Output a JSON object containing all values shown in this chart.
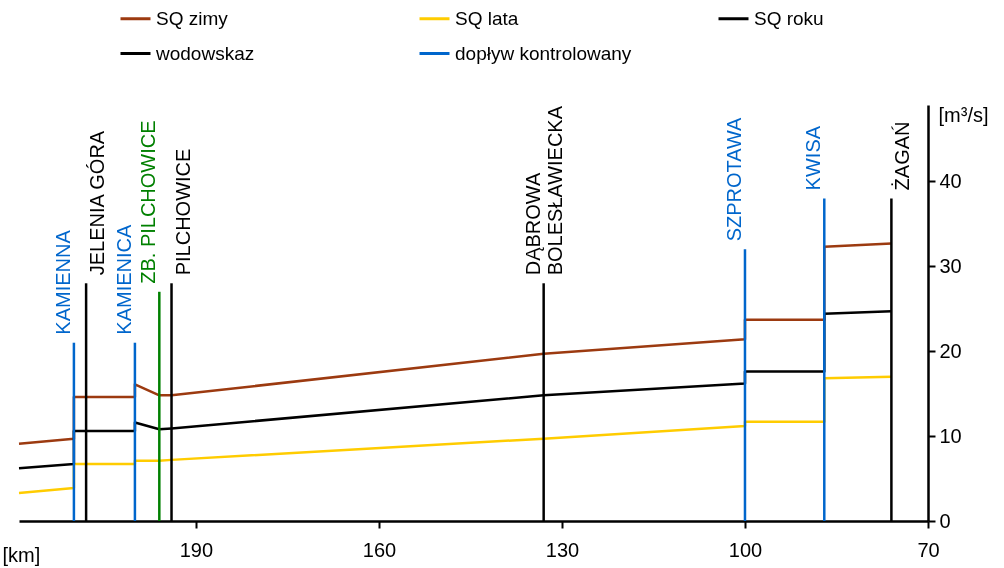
{
  "chart_data": {
    "type": "line",
    "xlabel": "[km]",
    "ylabel": "[m³/s]",
    "xlim": [
      219,
      70
    ],
    "xticks": [
      190,
      160,
      130,
      100,
      70
    ],
    "ylim": [
      0,
      49
    ],
    "yticks": [
      0,
      10,
      20,
      30,
      40
    ],
    "grid": false,
    "legend": "top",
    "marker": "none",
    "line_style": "solid",
    "series": [
      {
        "name": "SQ zimy",
        "color": "#9c3a10",
        "x": [
          219,
          210,
          210,
          200,
          200,
          196,
          194,
          133,
          100,
          100,
          87,
          87,
          76
        ],
        "values": [
          9.1,
          9.7,
          14.6,
          14.6,
          16.1,
          14.8,
          14.8,
          19.7,
          21.4,
          23.7,
          23.7,
          32.3,
          32.7
        ]
      },
      {
        "name": "SQ lata",
        "color": "#ffcc00",
        "x": [
          219,
          210,
          210,
          200,
          200,
          196,
          194,
          133,
          100,
          100,
          87,
          87,
          76
        ],
        "values": [
          3.3,
          3.9,
          6.7,
          6.7,
          7.1,
          7.1,
          7.2,
          9.7,
          11.2,
          11.7,
          11.7,
          16.8,
          17.0
        ]
      },
      {
        "name": "SQ roku",
        "color": "#000000",
        "x": [
          219,
          210,
          210,
          200,
          200,
          196,
          194,
          133,
          100,
          100,
          87,
          87,
          76
        ],
        "values": [
          6.2,
          6.7,
          10.6,
          10.6,
          11.6,
          10.8,
          10.9,
          14.8,
          16.2,
          17.6,
          17.6,
          24.4,
          24.7
        ]
      },
      {
        "name": "wodowskaz",
        "color": "#000000",
        "x": [
          208,
          208,
          null,
          194,
          194,
          null,
          133,
          133,
          null,
          76,
          76
        ],
        "values": [
          0,
          28,
          null,
          0,
          28,
          null,
          0,
          28,
          null,
          0,
          38
        ]
      },
      {
        "name": "dopływ kontrolowany",
        "color": "#0066cc",
        "x": [
          210,
          210,
          null,
          200,
          200,
          null,
          100,
          100,
          null,
          87,
          87
        ],
        "values": [
          0,
          21,
          null,
          0,
          21,
          null,
          0,
          32,
          null,
          0,
          38
        ]
      },
      {
        "color": "#008000",
        "x": [
          196,
          196
        ],
        "values": [
          0,
          27
        ]
      }
    ],
    "annotations": [
      {
        "text": "KAMIENNA",
        "x": 210,
        "y": 21
      },
      {
        "text": "JELENIA GÓRA",
        "x": 208,
        "y": 28
      },
      {
        "text": "KAMIENICA",
        "x": 200,
        "y": 21
      },
      {
        "text": "ZB. PILCHOWICE",
        "x": 196,
        "y": 27
      },
      {
        "text": "PILCHOWICE",
        "x": 194,
        "y": 28
      },
      {
        "text": "DĄBROWA\nBOLESŁAWIECKA",
        "x": 133,
        "y": 28
      },
      {
        "text": "SZPROTAWA",
        "x": 100,
        "y": 32
      },
      {
        "text": "KWISA",
        "x": 87,
        "y": 38
      },
      {
        "text": "ŻAGAŃ",
        "x": 76,
        "y": 38
      }
    ]
  }
}
